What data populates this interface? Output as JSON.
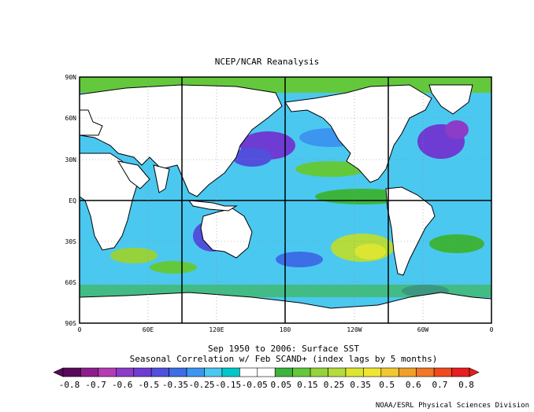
{
  "title": "NCEP/NCAR Reanalysis",
  "caption_line1": "Sep 1950 to 2006: Surface SST",
  "caption_line2": "Seasonal Correlation w/ Feb SCAND+ (index lags by 5 months)",
  "credit": "NOAA/ESRL Physical Sciences Division",
  "lat_labels": [
    "90N",
    "60N",
    "30N",
    "EQ",
    "30S",
    "60S",
    "90S"
  ],
  "lon_labels": [
    "0",
    "60E",
    "120E",
    "180",
    "120W",
    "60W",
    "0"
  ],
  "colorbar_labels": [
    "-0.8",
    "-0.7",
    "-0.6",
    "-0.5",
    "-0.35",
    "-0.25",
    "-0.15",
    "-0.05",
    "0.05",
    "0.15",
    "0.25",
    "0.35",
    "0.5",
    "0.6",
    "0.7",
    "0.8"
  ],
  "colorbar_colors": [
    "#5a0a5a",
    "#8c1e8c",
    "#b43cb4",
    "#8c3cc8",
    "#6e3cd2",
    "#5050dc",
    "#3c6ee6",
    "#3c96f0",
    "#4bc8f0",
    "#00c8c8",
    "#ffffff",
    "#ffffff",
    "#3cb43c",
    "#64c83c",
    "#96d23c",
    "#b4dc3c",
    "#dce632",
    "#f0e632",
    "#f0c832",
    "#f0a028",
    "#f07828",
    "#f04a1e",
    "#e61e1e"
  ],
  "land_color": "#ffffff",
  "ocean_legend": {
    "positive": "green-yellow-red",
    "negative": "cyan-blue-purple"
  }
}
